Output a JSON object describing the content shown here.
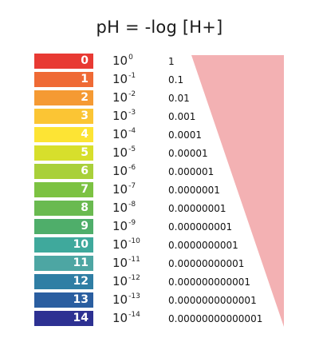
{
  "title": "pH = -log [H+]",
  "triangle_color": "#f3b1b3",
  "rows": [
    {
      "ph": "0",
      "base": "10",
      "exp": "0",
      "value": "1",
      "color": "#e83a33"
    },
    {
      "ph": "1",
      "base": "10",
      "exp": "-1",
      "value": "0.1",
      "color": "#ef6a35"
    },
    {
      "ph": "2",
      "base": "10",
      "exp": "-2",
      "value": "0.01",
      "color": "#f59a33"
    },
    {
      "ph": "3",
      "base": "10",
      "exp": "-3",
      "value": "0.001",
      "color": "#fbc534"
    },
    {
      "ph": "4",
      "base": "10",
      "exp": "-4",
      "value": "0.0001",
      "color": "#fde434"
    },
    {
      "ph": "5",
      "base": "10",
      "exp": "-5",
      "value": "0.00001",
      "color": "#d7df2c"
    },
    {
      "ph": "6",
      "base": "10",
      "exp": "-6",
      "value": "0.000001",
      "color": "#a9d03a"
    },
    {
      "ph": "7",
      "base": "10",
      "exp": "-7",
      "value": "0.0000001",
      "color": "#7cc242"
    },
    {
      "ph": "8",
      "base": "10",
      "exp": "-8",
      "value": "0.00000001",
      "color": "#6aba50"
    },
    {
      "ph": "9",
      "base": "10",
      "exp": "-9",
      "value": "0.000000001",
      "color": "#4fae6a"
    },
    {
      "ph": "10",
      "base": "10",
      "exp": "-10",
      "value": "0.0000000001",
      "color": "#3fa99c"
    },
    {
      "ph": "11",
      "base": "10",
      "exp": "-11",
      "value": "0.00000000001",
      "color": "#4da6a3"
    },
    {
      "ph": "12",
      "base": "10",
      "exp": "-12",
      "value": "0.000000000001",
      "color": "#2f7ea4"
    },
    {
      "ph": "13",
      "base": "10",
      "exp": "-13",
      "value": "0.0000000000001",
      "color": "#2a5ea0"
    },
    {
      "ph": "14",
      "base": "10",
      "exp": "-14",
      "value": "0.00000000000001",
      "color": "#2d3192"
    }
  ]
}
